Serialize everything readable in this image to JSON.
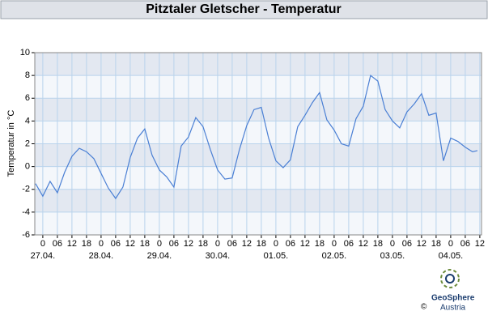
{
  "chart_data": {
    "type": "line",
    "title": "Pitztaler Gletscher - Temperatur",
    "y_label": "Temperatur in °C",
    "x": [
      -3,
      0,
      3,
      6,
      9,
      12,
      15,
      18,
      21,
      24,
      27,
      30,
      33,
      36,
      39,
      42,
      45,
      48,
      51,
      54,
      57,
      60,
      63,
      66,
      69,
      72,
      75,
      78,
      81,
      84,
      87,
      90,
      93,
      96,
      99,
      102,
      105,
      108,
      111,
      114,
      117,
      120,
      123,
      126,
      129,
      132,
      135,
      138,
      141,
      144,
      147,
      150,
      153,
      156,
      159,
      162,
      165,
      168,
      171,
      174,
      177,
      179
    ],
    "series": [
      {
        "name": "Temperatur",
        "color": "#4a7fd4",
        "values": [
          -1.5,
          -2.6,
          -1.3,
          -2.3,
          -0.5,
          0.9,
          1.6,
          1.3,
          0.7,
          -0.6,
          -1.9,
          -2.8,
          -1.8,
          0.8,
          2.5,
          3.3,
          1.0,
          -0.3,
          -0.9,
          -1.8,
          1.8,
          2.6,
          4.3,
          3.5,
          1.5,
          -0.3,
          -1.1,
          -1.0,
          1.5,
          3.6,
          5.0,
          5.2,
          2.5,
          0.5,
          -0.1,
          0.6,
          3.5,
          4.5,
          5.6,
          6.5,
          4.1,
          3.2,
          2.0,
          1.8,
          4.2,
          5.3,
          8.0,
          7.5,
          5.0,
          4.0,
          3.4,
          4.8,
          5.5,
          6.4,
          4.5,
          4.7,
          0.5,
          2.5,
          2.2,
          1.7,
          1.3,
          1.4
        ]
      }
    ],
    "xlim": [
      -3.3,
      180.7
    ],
    "ylim": [
      -6,
      10
    ],
    "yticks": [
      -6,
      -4,
      -2,
      0,
      2,
      4,
      6,
      8,
      10
    ],
    "xticks": [
      {
        "value": 0,
        "label": "0"
      },
      {
        "value": 6,
        "label": "06"
      },
      {
        "value": 12,
        "label": "12"
      },
      {
        "value": 18,
        "label": "18"
      },
      {
        "value": 24,
        "label": "0"
      },
      {
        "value": 30,
        "label": "06"
      },
      {
        "value": 36,
        "label": "12"
      },
      {
        "value": 42,
        "label": "18"
      },
      {
        "value": 48,
        "label": "0"
      },
      {
        "value": 54,
        "label": "06"
      },
      {
        "value": 60,
        "label": "12"
      },
      {
        "value": 66,
        "label": "18"
      },
      {
        "value": 72,
        "label": "0"
      },
      {
        "value": 78,
        "label": "06"
      },
      {
        "value": 84,
        "label": "12"
      },
      {
        "value": 90,
        "label": "18"
      },
      {
        "value": 96,
        "label": "0"
      },
      {
        "value": 102,
        "label": "06"
      },
      {
        "value": 108,
        "label": "12"
      },
      {
        "value": 114,
        "label": "18"
      },
      {
        "value": 120,
        "label": "0"
      },
      {
        "value": 126,
        "label": "06"
      },
      {
        "value": 132,
        "label": "12"
      },
      {
        "value": 138,
        "label": "18"
      },
      {
        "value": 144,
        "label": "0"
      },
      {
        "value": 150,
        "label": "06"
      },
      {
        "value": 156,
        "label": "12"
      },
      {
        "value": 162,
        "label": "18"
      },
      {
        "value": 168,
        "label": "0"
      },
      {
        "value": 174,
        "label": "06"
      },
      {
        "value": 180,
        "label": "12"
      }
    ],
    "dates": [
      {
        "value": 0,
        "label": "27.04."
      },
      {
        "value": 24,
        "label": "28.04."
      },
      {
        "value": 48,
        "label": "29.04."
      },
      {
        "value": 72,
        "label": "30.04."
      },
      {
        "value": 96,
        "label": "01.05."
      },
      {
        "value": 120,
        "label": "02.05."
      },
      {
        "value": 144,
        "label": "03.05."
      },
      {
        "value": 168,
        "label": "04.05."
      }
    ],
    "grid": true
  },
  "logo": {
    "name": "GeoSphere",
    "sub": "Austria",
    "copyright": "©"
  }
}
